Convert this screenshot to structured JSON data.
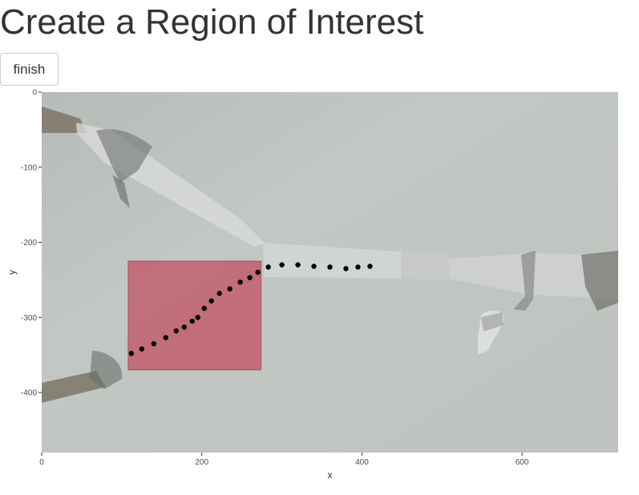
{
  "page": {
    "title": "Create a Region of Interest",
    "finish_label": "finish"
  },
  "chart_data": {
    "type": "scatter",
    "background": "video frame of a tube junction with two moving objects",
    "xlabel": "x",
    "ylabel": "y",
    "xlim": [
      0,
      720
    ],
    "ylim": [
      -480,
      0
    ],
    "x_ticks": [
      0,
      200,
      400,
      600
    ],
    "y_ticks": [
      0,
      -100,
      -200,
      -300,
      -400
    ],
    "grid": false,
    "roi": {
      "x": [
        108,
        274
      ],
      "y": [
        -370,
        -225
      ],
      "color": "#c0394e",
      "opacity": 0.62
    },
    "series": [
      {
        "color": "#000000",
        "values": [
          {
            "x": 112,
            "y": -348
          },
          {
            "x": 125,
            "y": -342
          },
          {
            "x": 140,
            "y": -335
          },
          {
            "x": 155,
            "y": -327
          },
          {
            "x": 168,
            "y": -318
          },
          {
            "x": 178,
            "y": -313
          },
          {
            "x": 188,
            "y": -305
          },
          {
            "x": 195,
            "y": -300
          },
          {
            "x": 203,
            "y": -288
          },
          {
            "x": 212,
            "y": -278
          },
          {
            "x": 222,
            "y": -268
          },
          {
            "x": 235,
            "y": -262
          },
          {
            "x": 248,
            "y": -253
          },
          {
            "x": 260,
            "y": -247
          },
          {
            "x": 270,
            "y": -240
          },
          {
            "x": 283,
            "y": -233
          },
          {
            "x": 300,
            "y": -230
          },
          {
            "x": 320,
            "y": -230
          },
          {
            "x": 340,
            "y": -232
          },
          {
            "x": 360,
            "y": -233
          },
          {
            "x": 380,
            "y": -235
          },
          {
            "x": 395,
            "y": -233
          },
          {
            "x": 410,
            "y": -232
          }
        ]
      }
    ]
  }
}
